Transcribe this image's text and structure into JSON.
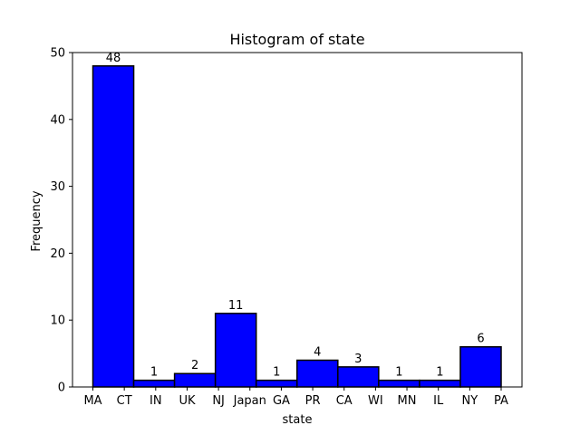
{
  "chart_data": {
    "type": "bar",
    "title": "Histogram of state",
    "xlabel": "state",
    "ylabel": "Frequency",
    "categories": [
      "MA",
      "CT",
      "IN",
      "UK",
      "NJ",
      "Japan",
      "GA",
      "PR",
      "CA",
      "WI",
      "MN",
      "IL",
      "NY",
      "PA"
    ],
    "bins": [
      {
        "value": 48,
        "label": "48"
      },
      {
        "value": 1,
        "label": "1"
      },
      {
        "value": 2,
        "label": "2"
      },
      {
        "value": 11,
        "label": "11"
      },
      {
        "value": 1,
        "label": "1"
      },
      {
        "value": 4,
        "label": "4"
      },
      {
        "value": 3,
        "label": "3"
      },
      {
        "value": 1,
        "label": "1"
      },
      {
        "value": 1,
        "label": "1"
      },
      {
        "value": 6,
        "label": "6"
      }
    ],
    "yticks": [
      0,
      10,
      20,
      30,
      40,
      50
    ],
    "ylim": [
      0,
      50
    ],
    "bar_color": "#0000ff",
    "edge_color": "#000000",
    "grid": false
  }
}
